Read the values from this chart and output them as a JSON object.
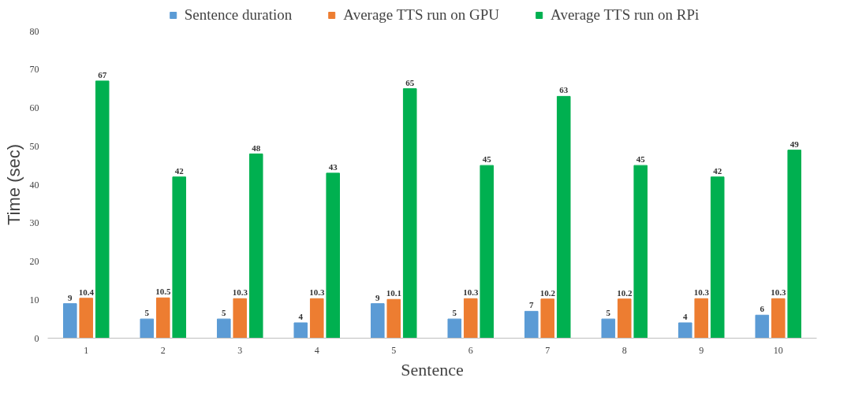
{
  "chart_data": {
    "type": "bar",
    "xlabel": "Sentence",
    "ylabel": "Time (sec)",
    "categories": [
      "1",
      "2",
      "3",
      "4",
      "5",
      "6",
      "7",
      "8",
      "9",
      "10"
    ],
    "series": [
      {
        "name": "Sentence duration",
        "color": "#5b9bd5",
        "values": [
          9,
          5,
          5,
          4,
          9,
          5,
          7,
          5,
          4,
          6
        ]
      },
      {
        "name": "Average TTS run on GPU",
        "color": "#ed7d31",
        "values": [
          10.4,
          10.5,
          10.3,
          10.3,
          10.1,
          10.3,
          10.2,
          10.2,
          10.3,
          10.3
        ]
      },
      {
        "name": "Average TTS run on RPi",
        "color": "#00b050",
        "values": [
          67,
          42,
          48,
          43,
          65,
          45,
          63,
          45,
          42,
          49
        ]
      }
    ],
    "ylim": [
      0,
      80
    ],
    "yticks": [
      0,
      10,
      20,
      30,
      40,
      50,
      60,
      70,
      80
    ],
    "data_labels": true,
    "legend": "top",
    "grid": false
  }
}
